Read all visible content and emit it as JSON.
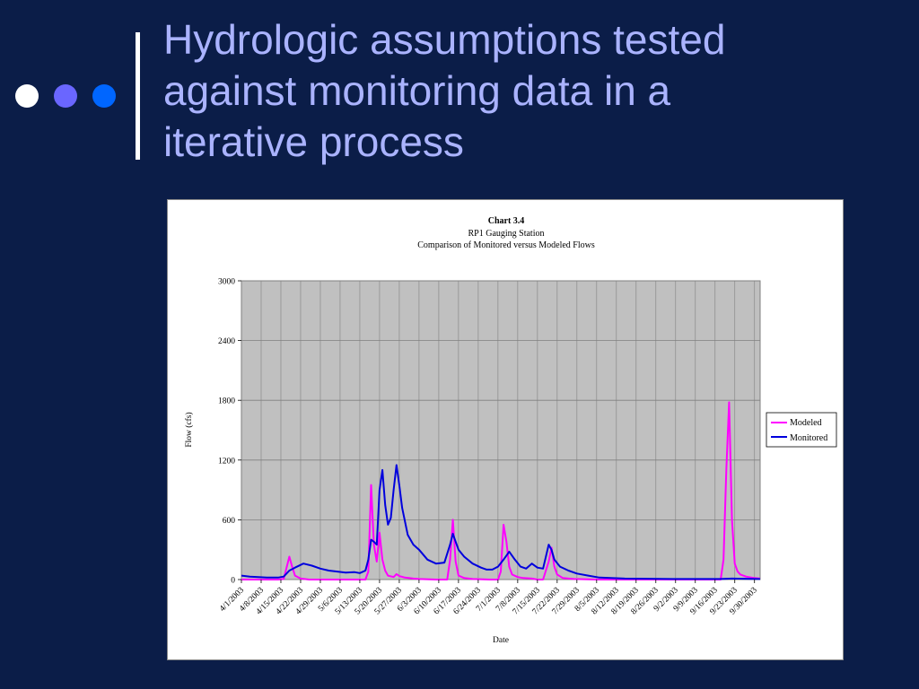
{
  "slide": {
    "title": "Hydrologic assumptions tested against monitoring data in a iterative process",
    "title_lines": [
      "Hydrologic assumptions tested",
      "against monitoring data in a",
      "iterative process"
    ],
    "dot_colors": [
      "#ffffff",
      "#6a66ff",
      "#0066ff"
    ]
  },
  "chart_data": {
    "type": "line",
    "title": "Chart 3.4",
    "subtitle": [
      "RP1 Gauging Station",
      "Comparison of Monitored versus Modeled Flows"
    ],
    "xlabel": "Date",
    "ylabel": "Flow (cfs)",
    "ylim": [
      0,
      3000
    ],
    "yticks": [
      0,
      600,
      1200,
      1800,
      2400,
      3000
    ],
    "xlim": [
      "4/1/2003",
      "10/2/2003"
    ],
    "xticks": [
      "4/1/2003",
      "4/8/2003",
      "4/15/2003",
      "4/22/2003",
      "4/29/2003",
      "5/6/2003",
      "5/13/2003",
      "5/20/2003",
      "5/27/2003",
      "6/3/2003",
      "6/10/2003",
      "6/17/2003",
      "6/24/2003",
      "7/1/2003",
      "7/8/2003",
      "7/15/2003",
      "7/22/2003",
      "7/29/2003",
      "8/5/2003",
      "8/12/2003",
      "8/19/2003",
      "8/26/2003",
      "9/2/2003",
      "9/9/2003",
      "9/16/2003",
      "9/23/2003",
      "9/30/2003"
    ],
    "grid": true,
    "plot_background": "#c0c0c0",
    "legend_position": "right",
    "series": [
      {
        "name": "Modeled",
        "color": "#ff00ff",
        "points": [
          [
            "4/1/2003",
            0
          ],
          [
            "4/14/2003",
            0
          ],
          [
            "4/16/2003",
            5
          ],
          [
            "4/17/2003",
            120
          ],
          [
            "4/18/2003",
            230
          ],
          [
            "4/19/2003",
            130
          ],
          [
            "4/20/2003",
            40
          ],
          [
            "4/22/2003",
            10
          ],
          [
            "4/25/2003",
            0
          ],
          [
            "5/15/2003",
            0
          ],
          [
            "5/16/2003",
            80
          ],
          [
            "5/17/2003",
            950
          ],
          [
            "5/18/2003",
            350
          ],
          [
            "5/19/2003",
            180
          ],
          [
            "5/20/2003",
            470
          ],
          [
            "5/21/2003",
            200
          ],
          [
            "5/22/2003",
            90
          ],
          [
            "5/23/2003",
            40
          ],
          [
            "5/25/2003",
            25
          ],
          [
            "5/26/2003",
            55
          ],
          [
            "5/27/2003",
            35
          ],
          [
            "5/29/2003",
            20
          ],
          [
            "6/1/2003",
            10
          ],
          [
            "6/3/2003",
            5
          ],
          [
            "6/9/2003",
            0
          ],
          [
            "6/13/2003",
            0
          ],
          [
            "6/14/2003",
            200
          ],
          [
            "6/15/2003",
            600
          ],
          [
            "6/16/2003",
            180
          ],
          [
            "6/17/2003",
            40
          ],
          [
            "6/19/2003",
            15
          ],
          [
            "6/22/2003",
            5
          ],
          [
            "6/28/2003",
            0
          ],
          [
            "7/1/2003",
            0
          ],
          [
            "7/2/2003",
            80
          ],
          [
            "7/3/2003",
            550
          ],
          [
            "7/4/2003",
            380
          ],
          [
            "7/5/2003",
            130
          ],
          [
            "7/6/2003",
            50
          ],
          [
            "7/8/2003",
            25
          ],
          [
            "7/10/2003",
            15
          ],
          [
            "7/13/2003",
            10
          ],
          [
            "7/15/2003",
            0
          ],
          [
            "7/17/2003",
            0
          ],
          [
            "7/19/2003",
            180
          ],
          [
            "7/20/2003",
            320
          ],
          [
            "7/21/2003",
            130
          ],
          [
            "7/22/2003",
            50
          ],
          [
            "7/24/2003",
            15
          ],
          [
            "7/28/2003",
            5
          ],
          [
            "8/5/2003",
            0
          ],
          [
            "9/18/2003",
            0
          ],
          [
            "9/19/2003",
            200
          ],
          [
            "9/20/2003",
            1100
          ],
          [
            "9/21/2003",
            1780
          ],
          [
            "9/22/2003",
            600
          ],
          [
            "9/23/2003",
            160
          ],
          [
            "9/24/2003",
            80
          ],
          [
            "9/25/2003",
            50
          ],
          [
            "9/27/2003",
            30
          ],
          [
            "9/30/2003",
            15
          ],
          [
            "10/2/2003",
            10
          ]
        ]
      },
      {
        "name": "Monitored",
        "color": "#0000dd",
        "points": [
          [
            "4/1/2003",
            40
          ],
          [
            "4/4/2003",
            30
          ],
          [
            "4/7/2003",
            25
          ],
          [
            "4/10/2003",
            20
          ],
          [
            "4/14/2003",
            20
          ],
          [
            "4/16/2003",
            30
          ],
          [
            "4/18/2003",
            90
          ],
          [
            "4/20/2003",
            120
          ],
          [
            "4/23/2003",
            160
          ],
          [
            "4/26/2003",
            140
          ],
          [
            "4/29/2003",
            110
          ],
          [
            "5/2/2003",
            90
          ],
          [
            "5/5/2003",
            80
          ],
          [
            "5/8/2003",
            70
          ],
          [
            "5/11/2003",
            75
          ],
          [
            "5/13/2003",
            65
          ],
          [
            "5/15/2003",
            90
          ],
          [
            "5/16/2003",
            200
          ],
          [
            "5/17/2003",
            400
          ],
          [
            "5/18/2003",
            380
          ],
          [
            "5/19/2003",
            350
          ],
          [
            "5/20/2003",
            900
          ],
          [
            "5/21/2003",
            1100
          ],
          [
            "5/22/2003",
            750
          ],
          [
            "5/23/2003",
            550
          ],
          [
            "5/24/2003",
            620
          ],
          [
            "5/25/2003",
            900
          ],
          [
            "5/26/2003",
            1150
          ],
          [
            "5/27/2003",
            950
          ],
          [
            "5/28/2003",
            720
          ],
          [
            "5/30/2003",
            450
          ],
          [
            "6/1/2003",
            350
          ],
          [
            "6/3/2003",
            300
          ],
          [
            "6/6/2003",
            200
          ],
          [
            "6/9/2003",
            160
          ],
          [
            "6/12/2003",
            170
          ],
          [
            "6/14/2003",
            350
          ],
          [
            "6/15/2003",
            460
          ],
          [
            "6/16/2003",
            380
          ],
          [
            "6/17/2003",
            300
          ],
          [
            "6/19/2003",
            230
          ],
          [
            "6/22/2003",
            160
          ],
          [
            "6/25/2003",
            120
          ],
          [
            "6/27/2003",
            100
          ],
          [
            "6/29/2003",
            100
          ],
          [
            "7/1/2003",
            130
          ],
          [
            "7/3/2003",
            200
          ],
          [
            "7/5/2003",
            280
          ],
          [
            "7/7/2003",
            200
          ],
          [
            "7/9/2003",
            130
          ],
          [
            "7/11/2003",
            110
          ],
          [
            "7/13/2003",
            160
          ],
          [
            "7/15/2003",
            120
          ],
          [
            "7/17/2003",
            110
          ],
          [
            "7/19/2003",
            350
          ],
          [
            "7/20/2003",
            300
          ],
          [
            "7/21/2003",
            200
          ],
          [
            "7/23/2003",
            130
          ],
          [
            "7/26/2003",
            90
          ],
          [
            "7/29/2003",
            60
          ],
          [
            "8/2/2003",
            40
          ],
          [
            "8/6/2003",
            20
          ],
          [
            "8/15/2003",
            10
          ],
          [
            "9/1/2003",
            5
          ],
          [
            "9/18/2003",
            5
          ],
          [
            "9/22/2003",
            10
          ],
          [
            "9/26/2003",
            8
          ],
          [
            "10/2/2003",
            5
          ]
        ]
      }
    ]
  }
}
